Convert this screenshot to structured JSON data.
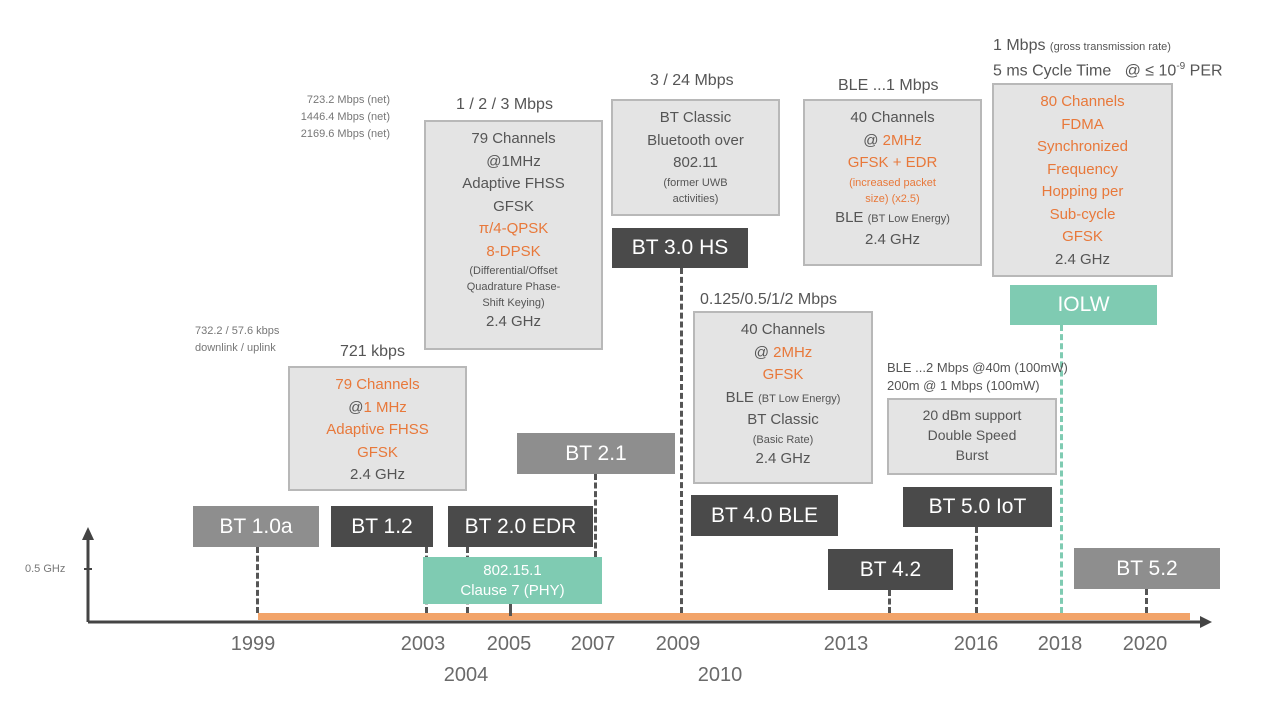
{
  "axis": {
    "y_label": "0.5 GHz"
  },
  "years_top": [
    "1999",
    "2003",
    "2005",
    "2007",
    "2009",
    "2013",
    "2016",
    "2018",
    "2020"
  ],
  "years_bottom": [
    "2004",
    "2010"
  ],
  "versions": {
    "bt10a": "BT 1.0a",
    "bt12": "BT 1.2",
    "bt20": "BT 2.0 EDR",
    "bt21": "BT 2.1",
    "bt30": "BT 3.0 HS",
    "bt40": "BT 4.0 BLE",
    "bt42": "BT 4.2",
    "bt50": "BT 5.0 IoT",
    "bt52": "BT 5.2",
    "ieee": [
      "802.15.1",
      "Clause 7 (PHY)"
    ],
    "iolw": "IOLW"
  },
  "notes": {
    "net": [
      "723.2 Mbps (net)",
      "1446.4 Mbps (net)",
      "2169.6 Mbps (net)"
    ],
    "dl": [
      "732.2 / 57.6 kbps",
      "downlink / uplink"
    ],
    "r721": "721 kbps",
    "r123": "1 / 2 / 3 Mbps",
    "r324": "3 / 24 Mbps",
    "rble1": "BLE ...1 Mbps",
    "iolw1": "1 Mbps",
    "iolw1s": "(gross transmission rate)",
    "iolw2": "5 ms  Cycle Time",
    "iolw2b": "@ ≤ 10",
    "iolw2exp": "-9",
    "iolw2c": " PER",
    "r0125": "0.125/0.5/1/2 Mbps",
    "ble2a": "BLE ...2 Mbps @40m (100mW)",
    "ble2b": "200m @ 1 Mbps (100mW)"
  },
  "boxes": {
    "b721": [
      "79 Channels",
      "@",
      "1 MHz",
      "Adaptive FHSS",
      "GFSK",
      "2.4 GHz"
    ],
    "b123": [
      "79 Channels",
      "@1MHz",
      "Adaptive FHSS",
      "GFSK",
      "π/4-QPSK",
      "8-DPSK",
      "(Differential/Offset",
      "Quadrature Phase-",
      "Shift Keying)",
      "2.4 GHz"
    ],
    "b324": [
      "BT Classic",
      "Bluetooth over",
      "802.11",
      "(former UWB",
      "activities)"
    ],
    "bble1": [
      "40 Channels",
      "@ ",
      "2MHz",
      "GFSK + EDR",
      "(increased packet",
      "size) (x2.5)",
      "BLE ",
      "(BT Low Energy)",
      "2.4 GHz"
    ],
    "biolw": [
      "80 Channels",
      "FDMA",
      "Synchronized",
      "Frequency",
      "Hopping per",
      "Sub-cycle",
      "GFSK",
      "2.4 GHz"
    ],
    "b0125": [
      "40 Channels",
      "@ ",
      "2MHz",
      "GFSK",
      "BLE ",
      "(BT Low Energy)",
      "BT Classic",
      "(Basic Rate)",
      "2.4 GHz"
    ],
    "b20dbm": [
      "20 dBm support",
      "Double Speed",
      "Burst"
    ]
  },
  "colors": {
    "accent": "#e8783a",
    "teal": "#7fcbb2",
    "dark": "#4a4a4a",
    "gray": "#8e8e8e"
  }
}
